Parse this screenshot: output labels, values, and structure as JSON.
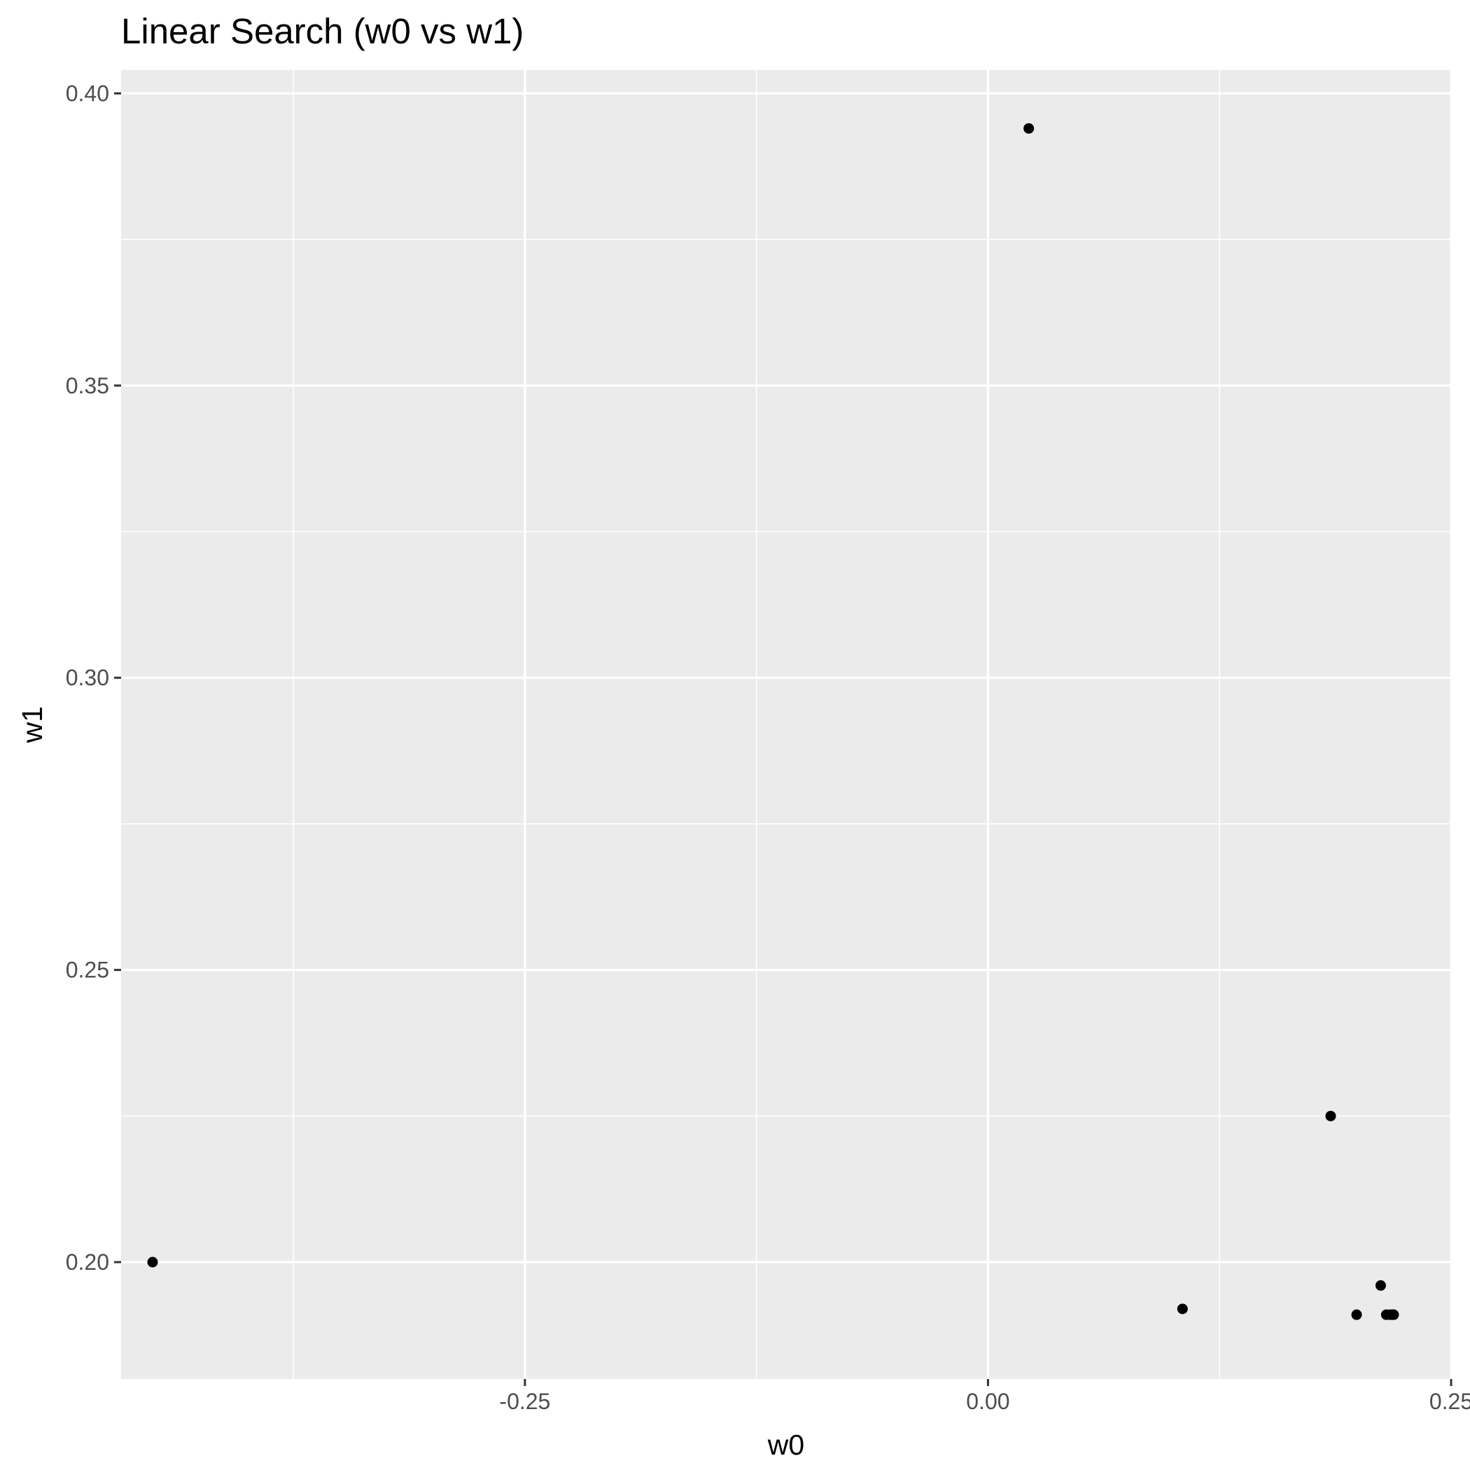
{
  "chart_data": {
    "type": "scatter",
    "title": "Linear Search (w0 vs w1)",
    "xlabel": "w0",
    "ylabel": "w1",
    "xlim": [
      -0.468,
      0.25
    ],
    "ylim": [
      0.18,
      0.404
    ],
    "x_ticks": [
      -0.25,
      0.0,
      0.25
    ],
    "x_tick_labels": [
      "-0.25",
      "0.00",
      "0.25"
    ],
    "y_ticks": [
      0.2,
      0.25,
      0.3,
      0.35,
      0.4
    ],
    "y_tick_labels": [
      "0.20",
      "0.25",
      "0.30",
      "0.35",
      "0.40"
    ],
    "grid": true,
    "legend": "none",
    "panel_color": "#ebebeb",
    "grid_color": "#ffffff",
    "point_color": "#000000",
    "points": [
      {
        "x": -0.451,
        "y": 0.2
      },
      {
        "x": 0.022,
        "y": 0.394
      },
      {
        "x": 0.105,
        "y": 0.192
      },
      {
        "x": 0.185,
        "y": 0.225
      },
      {
        "x": 0.199,
        "y": 0.191
      },
      {
        "x": 0.212,
        "y": 0.196
      },
      {
        "x": 0.215,
        "y": 0.191
      },
      {
        "x": 0.217,
        "y": 0.191
      },
      {
        "x": 0.218,
        "y": 0.191
      },
      {
        "x": 0.219,
        "y": 0.191
      }
    ]
  }
}
